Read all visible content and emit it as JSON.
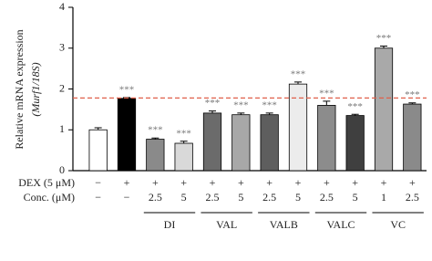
{
  "chart_data": {
    "type": "bar",
    "y_label": "Relative mRNA expression",
    "y_label_sub": "(Murf1/18S)",
    "categories": [
      null,
      null,
      null,
      null,
      null,
      null,
      null,
      null,
      null,
      null,
      null,
      null
    ],
    "values": [
      1.0,
      1.77,
      0.77,
      0.67,
      1.41,
      1.37,
      1.37,
      2.12,
      1.6,
      1.35,
      3.0,
      1.63
    ],
    "errors": [
      0.05,
      0.02,
      0.03,
      0.05,
      0.05,
      0.04,
      0.04,
      0.05,
      0.1,
      0.03,
      0.05,
      0.03
    ],
    "colors": [
      "#ffffff",
      "#000000",
      "#8a8a8a",
      "#d9d9d9",
      "#6b6b6b",
      "#a8a8a8",
      "#5e5e5e",
      "#ececec",
      "#8c8c8c",
      "#3f3f3f",
      "#a9a9a9",
      "#8a8a8a"
    ],
    "significance": [
      null,
      "***",
      "***",
      "***",
      "***",
      "***",
      "***",
      "***",
      "***",
      "***",
      "***",
      "***"
    ],
    "reference_line": 1.78,
    "ylim": [
      0,
      4
    ],
    "yticks": [
      0,
      1,
      2,
      3,
      4
    ],
    "row_labels": [
      "DEX (5 μM)",
      "Conc. (μM)"
    ],
    "dex": [
      "−",
      "+",
      "+",
      "+",
      "+",
      "+",
      "+",
      "+",
      "+",
      "+",
      "+",
      "+"
    ],
    "conc": [
      "−",
      "−",
      "2.5",
      "5",
      "2.5",
      "5",
      "2.5",
      "5",
      "2.5",
      "5",
      "1",
      "2.5"
    ],
    "groups": [
      {
        "label": "DI",
        "start": 2,
        "end": 3
      },
      {
        "label": "VAL",
        "start": 4,
        "end": 5
      },
      {
        "label": "VALB",
        "start": 6,
        "end": 7
      },
      {
        "label": "VALC",
        "start": 8,
        "end": 9
      },
      {
        "label": "VC",
        "start": 10,
        "end": 11
      }
    ]
  }
}
